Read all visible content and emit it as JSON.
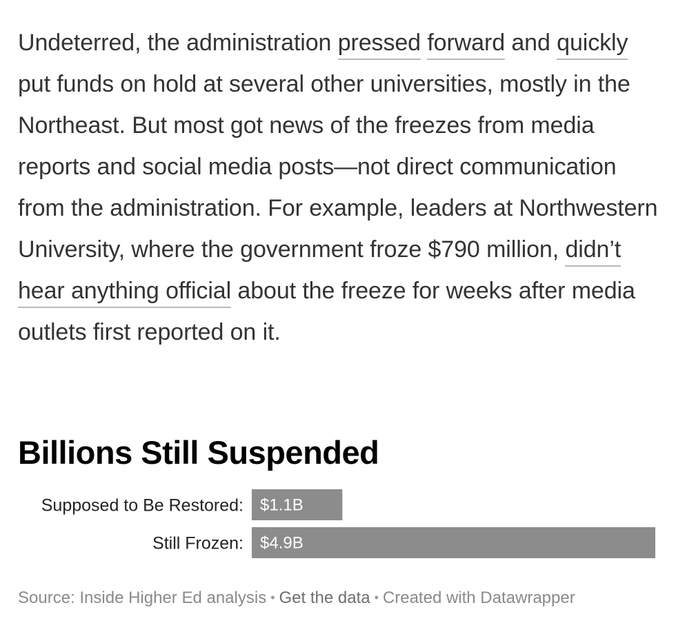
{
  "article": {
    "seg1": "Undeterred, the administration ",
    "link1": "pressed",
    "seg2": " ",
    "link2": "forward",
    "seg3": " and ",
    "link3": "quickly",
    "seg4": " put funds on hold at several other universities, mostly in the Northeast. But most got news of the freezes from media reports and social media posts—not direct communication from the administration. For example, leaders at Northwestern University, where the government froze $790 million, ",
    "link4": "didn’t hear anything official",
    "seg5": " about the freeze for weeks after media outlets first reported on it."
  },
  "chart_data": {
    "type": "bar",
    "orientation": "horizontal",
    "title": "Billions Still Suspended",
    "categories": [
      "Supposed to Be Restored:",
      "Still Frozen:"
    ],
    "values": [
      1.1,
      4.9
    ],
    "value_labels": [
      "$1.1B",
      "$4.9B"
    ],
    "xlim": [
      0,
      4.9
    ],
    "bar_color": "#8c8c8c",
    "grid": false,
    "legend": "none"
  },
  "footer": {
    "source": "Source: Inside Higher Ed analysis",
    "get_data": "Get the data",
    "created": "Created with Datawrapper",
    "separator": "•"
  }
}
